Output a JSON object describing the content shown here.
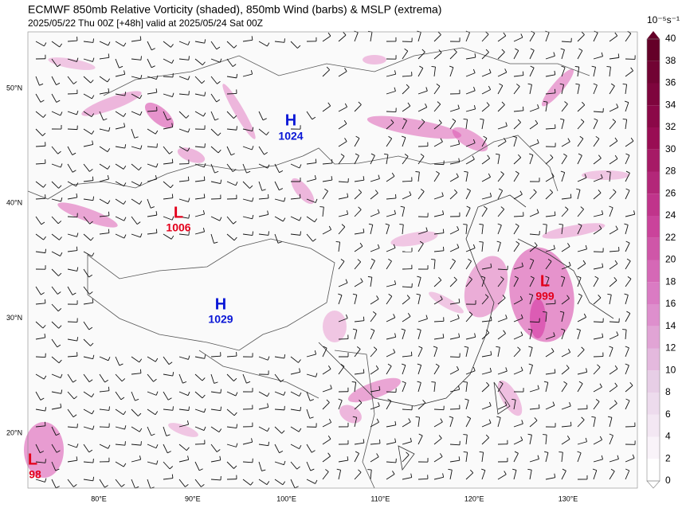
{
  "header": {
    "title": "ECMWF 850mb Relative Vorticity (shaded), 850mb Wind (barbs) & MSLP (extrema)",
    "subtitle": "2025/05/22 Thu 00Z [+48h] valid at 2025/05/24 Sat 00Z"
  },
  "map": {
    "lon_labels": [
      "80°E",
      "90°E",
      "100°E",
      "110°E",
      "120°E",
      "130°E"
    ],
    "lat_labels": [
      "50°N",
      "40°N",
      "30°N",
      "20°N"
    ],
    "extrema": [
      {
        "symbol": "H",
        "value": "1024"
      },
      {
        "symbol": "L",
        "value": "1006"
      },
      {
        "symbol": "H",
        "value": "1029"
      },
      {
        "symbol": "L",
        "value": "999"
      },
      {
        "symbol": "L",
        "value": "98"
      }
    ]
  },
  "colorbar": {
    "unit": "10⁻⁵s⁻¹",
    "ticks": [
      "0",
      "2",
      "4",
      "6",
      "8",
      "10",
      "12",
      "14",
      "16",
      "18",
      "20",
      "22",
      "24",
      "26",
      "28",
      "30",
      "32",
      "34",
      "36",
      "38",
      "40"
    ]
  }
}
